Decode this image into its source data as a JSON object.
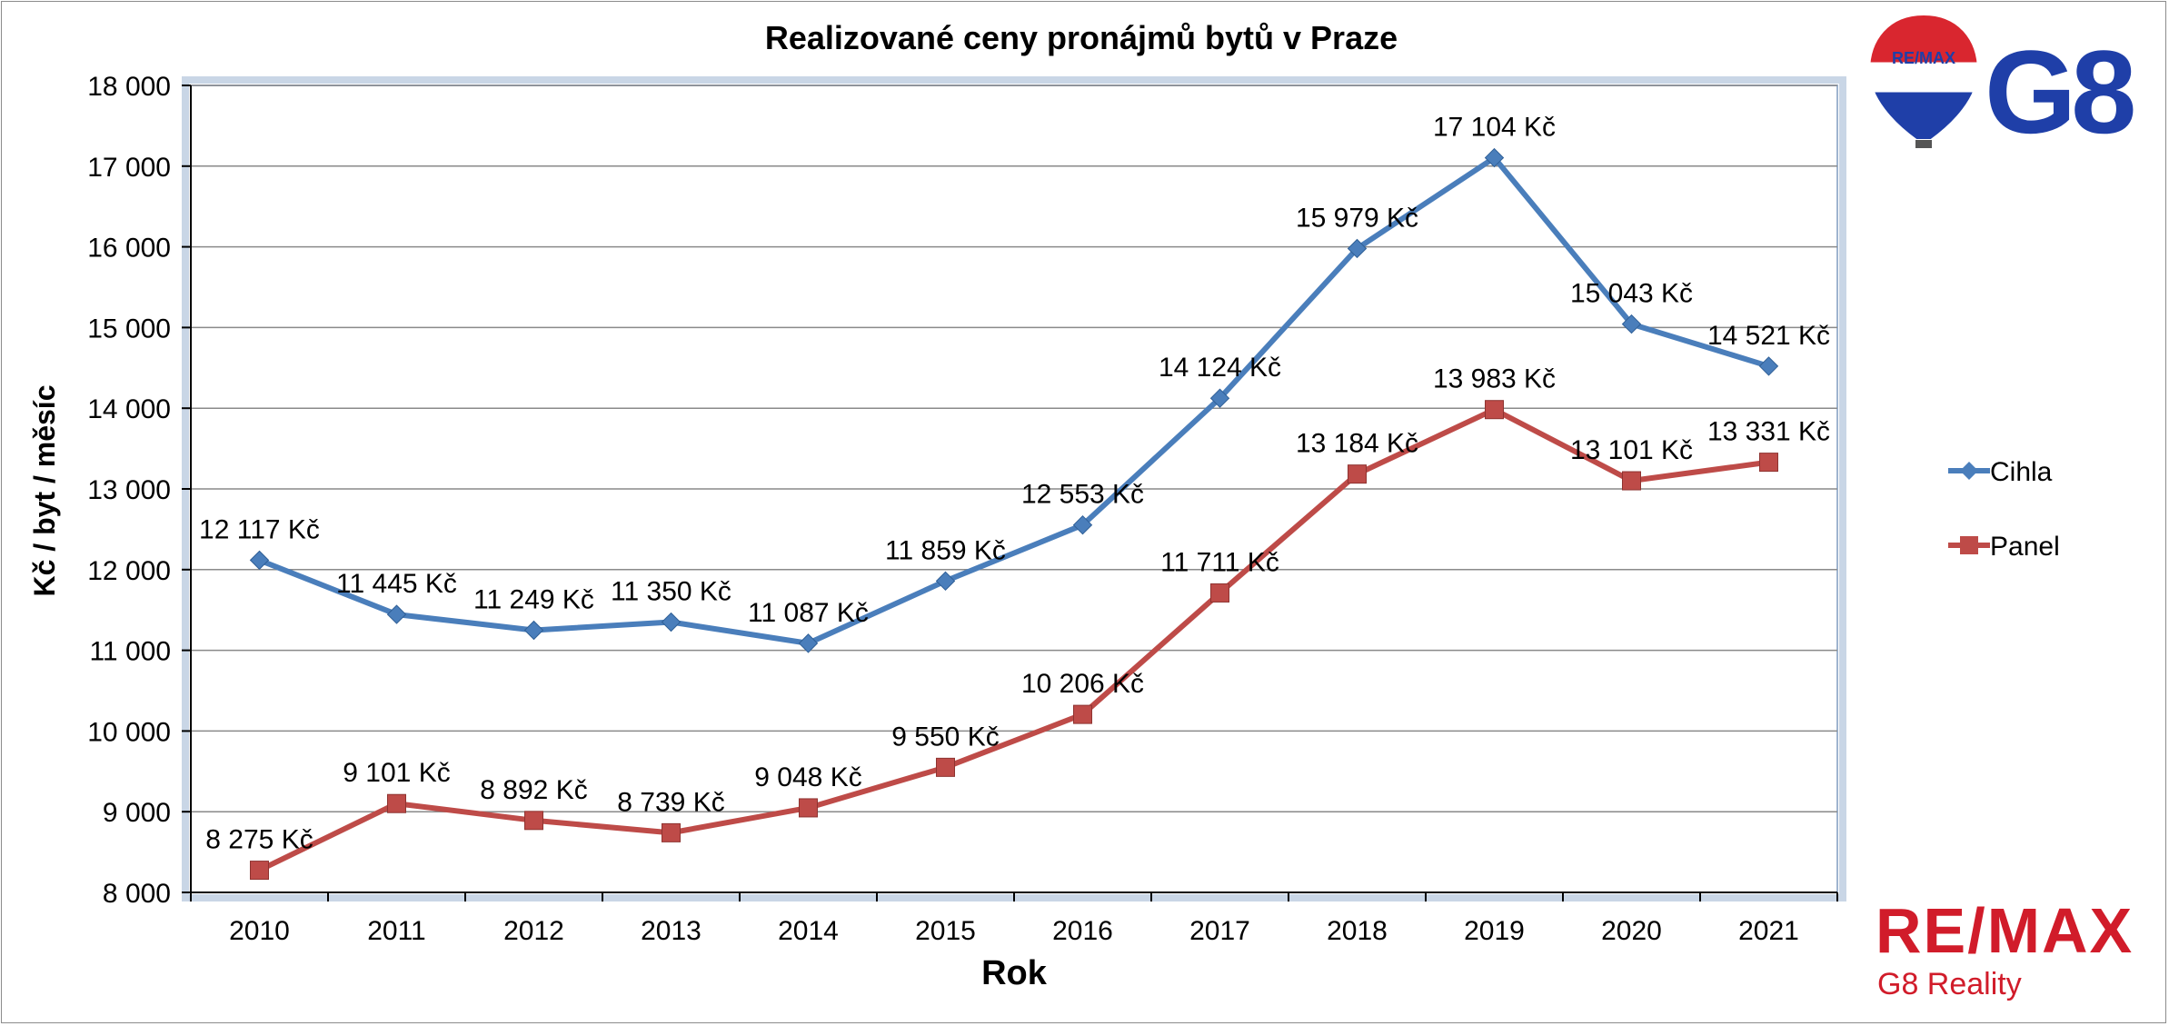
{
  "chart_data": {
    "type": "line",
    "title": "Realizované ceny pronájmů bytů v Praze",
    "xlabel": "Rok",
    "ylabel": "Kč / byt / měsíc",
    "categories": [
      "2010",
      "2011",
      "2012",
      "2013",
      "2014",
      "2015",
      "2016",
      "2017",
      "2018",
      "2019",
      "2020",
      "2021"
    ],
    "ylim": [
      8000,
      18000
    ],
    "yticks": [
      8000,
      9000,
      10000,
      11000,
      12000,
      13000,
      14000,
      15000,
      16000,
      17000,
      18000
    ],
    "ytick_labels": [
      "8 000",
      "9 000",
      "10 000",
      "11 000",
      "12 000",
      "13 000",
      "14 000",
      "15 000",
      "16 000",
      "17 000",
      "18 000"
    ],
    "grid": true,
    "legend_position": "right",
    "series": [
      {
        "name": "Cihla",
        "color": "#4a7ebb",
        "marker": "diamond",
        "values": [
          12117,
          11445,
          11249,
          11350,
          11087,
          11859,
          12553,
          14124,
          15979,
          17104,
          15043,
          14521
        ],
        "labels": [
          "12 117 Kč",
          "11 445 Kč",
          "11 249 Kč",
          "11 350 Kč",
          "11 087 Kč",
          "11 859 Kč",
          "12 553 Kč",
          "14 124 Kč",
          "15 979 Kč",
          "17 104 Kč",
          "15 043 Kč",
          "14 521 Kč"
        ]
      },
      {
        "name": "Panel",
        "color": "#be4b48",
        "marker": "square",
        "values": [
          8275,
          9101,
          8892,
          8739,
          9048,
          9550,
          10206,
          11711,
          13184,
          13983,
          13101,
          13331
        ],
        "labels": [
          "8 275 Kč",
          "9 101 Kč",
          "8 892 Kč",
          "8 739 Kč",
          "9 048 Kč",
          "9 550 Kč",
          "10 206 Kč",
          "11 711 Kč",
          "13 184 Kč",
          "13 983 Kč",
          "13 101 Kč",
          "13 331 Kč"
        ]
      }
    ]
  },
  "logos": {
    "top": {
      "text": "RE/MAX",
      "name": "G8",
      "color": "#1f3fa8"
    },
    "bottom": {
      "brand": "RE/MAX",
      "sub": "G8 Reality",
      "color": "#d11c2a"
    }
  }
}
